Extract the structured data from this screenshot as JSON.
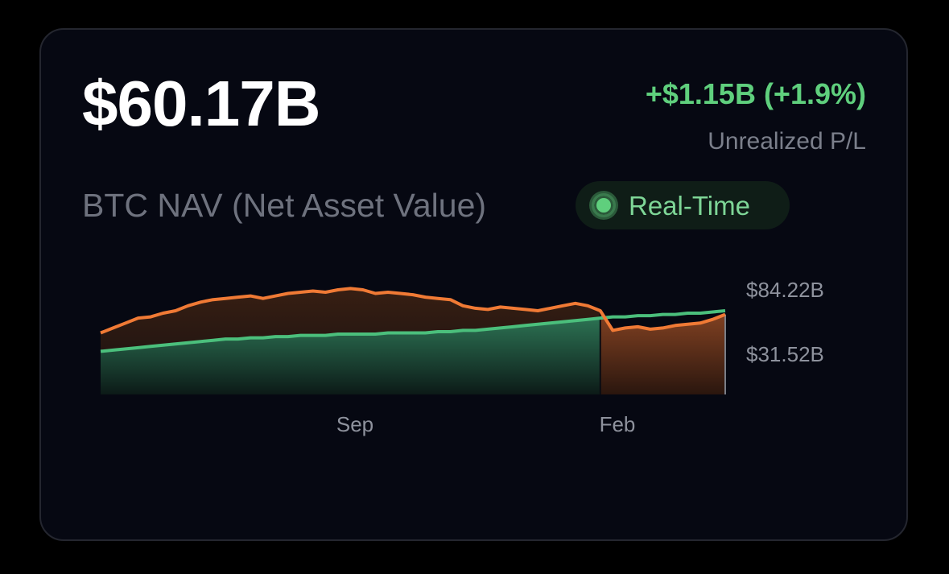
{
  "card": {
    "value": "$60.17B",
    "pl_value": "+$1.15B (+1.9%)",
    "pl_label": "Unrealized P/L",
    "nav_label": "BTC NAV (Net Asset Value)",
    "badge_label": "Real-Time"
  },
  "colors": {
    "background": "#060812",
    "nav_line": "#f07a35",
    "cost_line": "#4bbf7c",
    "positive": "#5fcf7d",
    "muted": "#7b7f8b"
  },
  "chart_data": {
    "type": "area",
    "x_tick_labels": [
      "Sep",
      "Feb"
    ],
    "y_tick_labels": [
      "$84.22B",
      "$31.52B"
    ],
    "series": [
      {
        "values": [
          50,
          54,
          58,
          62,
          63,
          66,
          68,
          72,
          75,
          77,
          78,
          79,
          80,
          78,
          80,
          82,
          83,
          84,
          83,
          85,
          86,
          85,
          82,
          83,
          82,
          81,
          79,
          78,
          77,
          72,
          70,
          69,
          71,
          70,
          69,
          68,
          70,
          72,
          74,
          72,
          68,
          52,
          54,
          55,
          53,
          54,
          56,
          57,
          58,
          61,
          65
        ]
      },
      {
        "values": [
          35,
          36,
          37,
          38,
          39,
          40,
          41,
          42,
          43,
          44,
          45,
          45,
          46,
          46,
          47,
          47,
          48,
          48,
          48,
          49,
          49,
          49,
          49,
          50,
          50,
          50,
          50,
          51,
          51,
          52,
          52,
          53,
          54,
          55,
          56,
          57,
          58,
          59,
          60,
          61,
          62,
          63,
          63,
          64,
          64,
          65,
          65,
          66,
          66,
          67,
          68
        ]
      }
    ],
    "ylim": [
      0,
      100
    ]
  }
}
